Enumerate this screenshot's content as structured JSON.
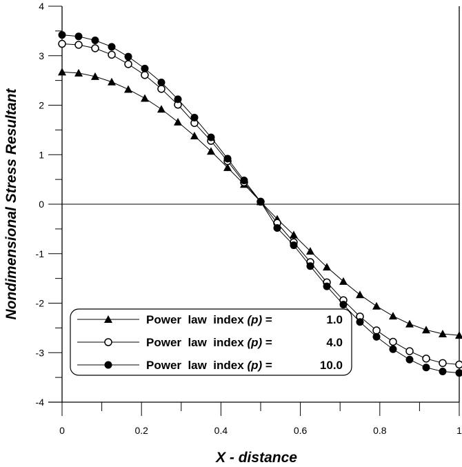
{
  "chart_data": {
    "type": "line",
    "title": "",
    "xlabel": "X - distance",
    "ylabel": "Nondimensional  Stress  Resultant",
    "xlim": [
      0,
      1
    ],
    "ylim": [
      -4,
      4
    ],
    "xticks": [
      "0",
      "0.2",
      "0.4",
      "0.6",
      "0.8",
      "1"
    ],
    "yticks": [
      "-4",
      "-3",
      "-2",
      "-1",
      "0",
      "1",
      "2",
      "3",
      "4"
    ],
    "grid": false,
    "legend_placement": "bottom-left",
    "x": [
      0,
      0.0417,
      0.0833,
      0.125,
      0.1667,
      0.2083,
      0.25,
      0.2917,
      0.3333,
      0.375,
      0.4167,
      0.4583,
      0.5,
      0.5417,
      0.5833,
      0.625,
      0.6667,
      0.7083,
      0.75,
      0.7917,
      0.8333,
      0.875,
      0.9167,
      0.9583,
      1
    ],
    "series": [
      {
        "name": "Power  law  index (p) =    1.0",
        "label_text": "Power  law  index ",
        "label_p": "(p)",
        "label_eq": " =",
        "label_val": "1.0",
        "marker": "filled-triangle",
        "values": [
          2.67,
          2.65,
          2.58,
          2.47,
          2.32,
          2.14,
          1.92,
          1.66,
          1.38,
          1.07,
          0.74,
          0.4,
          0.05,
          -0.3,
          -0.62,
          -0.95,
          -1.27,
          -1.56,
          -1.83,
          -2.06,
          -2.26,
          -2.42,
          -2.54,
          -2.62,
          -2.65
        ]
      },
      {
        "name": "Power  law  index (p) =    4.0",
        "label_text": "Power  law  index ",
        "label_p": "(p)",
        "label_eq": " =",
        "label_val": "4.0",
        "marker": "open-circle",
        "values": [
          3.24,
          3.22,
          3.15,
          3.02,
          2.83,
          2.61,
          2.33,
          2.01,
          1.64,
          1.28,
          0.87,
          0.44,
          0.05,
          -0.38,
          -0.77,
          -1.17,
          -1.58,
          -1.94,
          -2.27,
          -2.55,
          -2.78,
          -2.97,
          -3.12,
          -3.21,
          -3.24
        ]
      },
      {
        "name": "Power  law  index (p) =  10.0",
        "label_text": "Power  law  index ",
        "label_p": "(p)",
        "label_eq": " =",
        "label_val": "10.0",
        "marker": "filled-circle",
        "values": [
          3.42,
          3.39,
          3.31,
          3.18,
          2.98,
          2.74,
          2.46,
          2.12,
          1.75,
          1.35,
          0.92,
          0.48,
          0.05,
          -0.48,
          -0.83,
          -1.25,
          -1.66,
          -2.03,
          -2.38,
          -2.68,
          -2.93,
          -3.14,
          -3.3,
          -3.38,
          -3.41
        ]
      }
    ]
  }
}
